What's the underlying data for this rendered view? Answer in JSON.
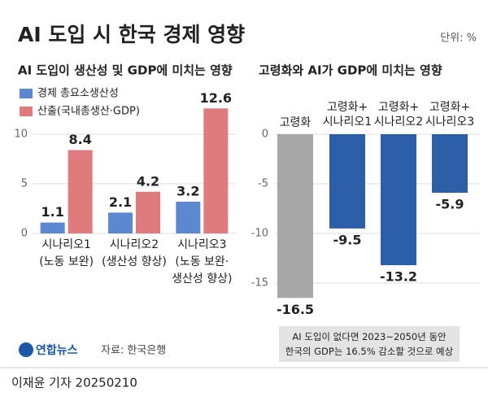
{
  "title": "AI 도입 시 한국 경제 영향",
  "unit": "단위: %",
  "chart_data": [
    {
      "type": "bar",
      "title": "AI 도입이 생산성 및 GDP에 미치는 영향",
      "categories": [
        "시나리오1\n(노동 보완)",
        "시나리오2\n(생산성 향상)",
        "시나리오3\n(노동 보완·\n생산성 향상)"
      ],
      "series": [
        {
          "name": "경제 총요소생산성",
          "color": "#5b88cf",
          "values": [
            1.1,
            2.1,
            3.2
          ]
        },
        {
          "name": "산출(국내총생산·GDP)",
          "color": "#e07b7d",
          "values": [
            8.4,
            4.2,
            12.6
          ]
        }
      ],
      "ylim": [
        0,
        14
      ],
      "yticks": [
        0,
        5,
        10
      ],
      "grid": true
    },
    {
      "type": "bar",
      "title": "고령화와 AI가 GDP에 미치는 영향",
      "categories": [
        "고령화",
        "고령화+\n시나리오1",
        "고령화+\n시나리오2",
        "고령화+\n시나리오3"
      ],
      "values": [
        -16.5,
        -9.5,
        -13.2,
        -5.9
      ],
      "colors": [
        "#a7a7a7",
        "#2d5ea8",
        "#2d5ea8",
        "#2d5ea8"
      ],
      "ylim": [
        -17,
        0
      ],
      "yticks": [
        0,
        -5,
        -10,
        -15
      ],
      "grid": true,
      "annotation": "AI 도입이 없다면 2023~2050년 동안\n한국의 GDP는 16.5% 감소할 것으로 예상"
    }
  ],
  "logo": "연합뉴스",
  "source": "자료: 한국은행",
  "byline": "이재윤 기자  20250210"
}
